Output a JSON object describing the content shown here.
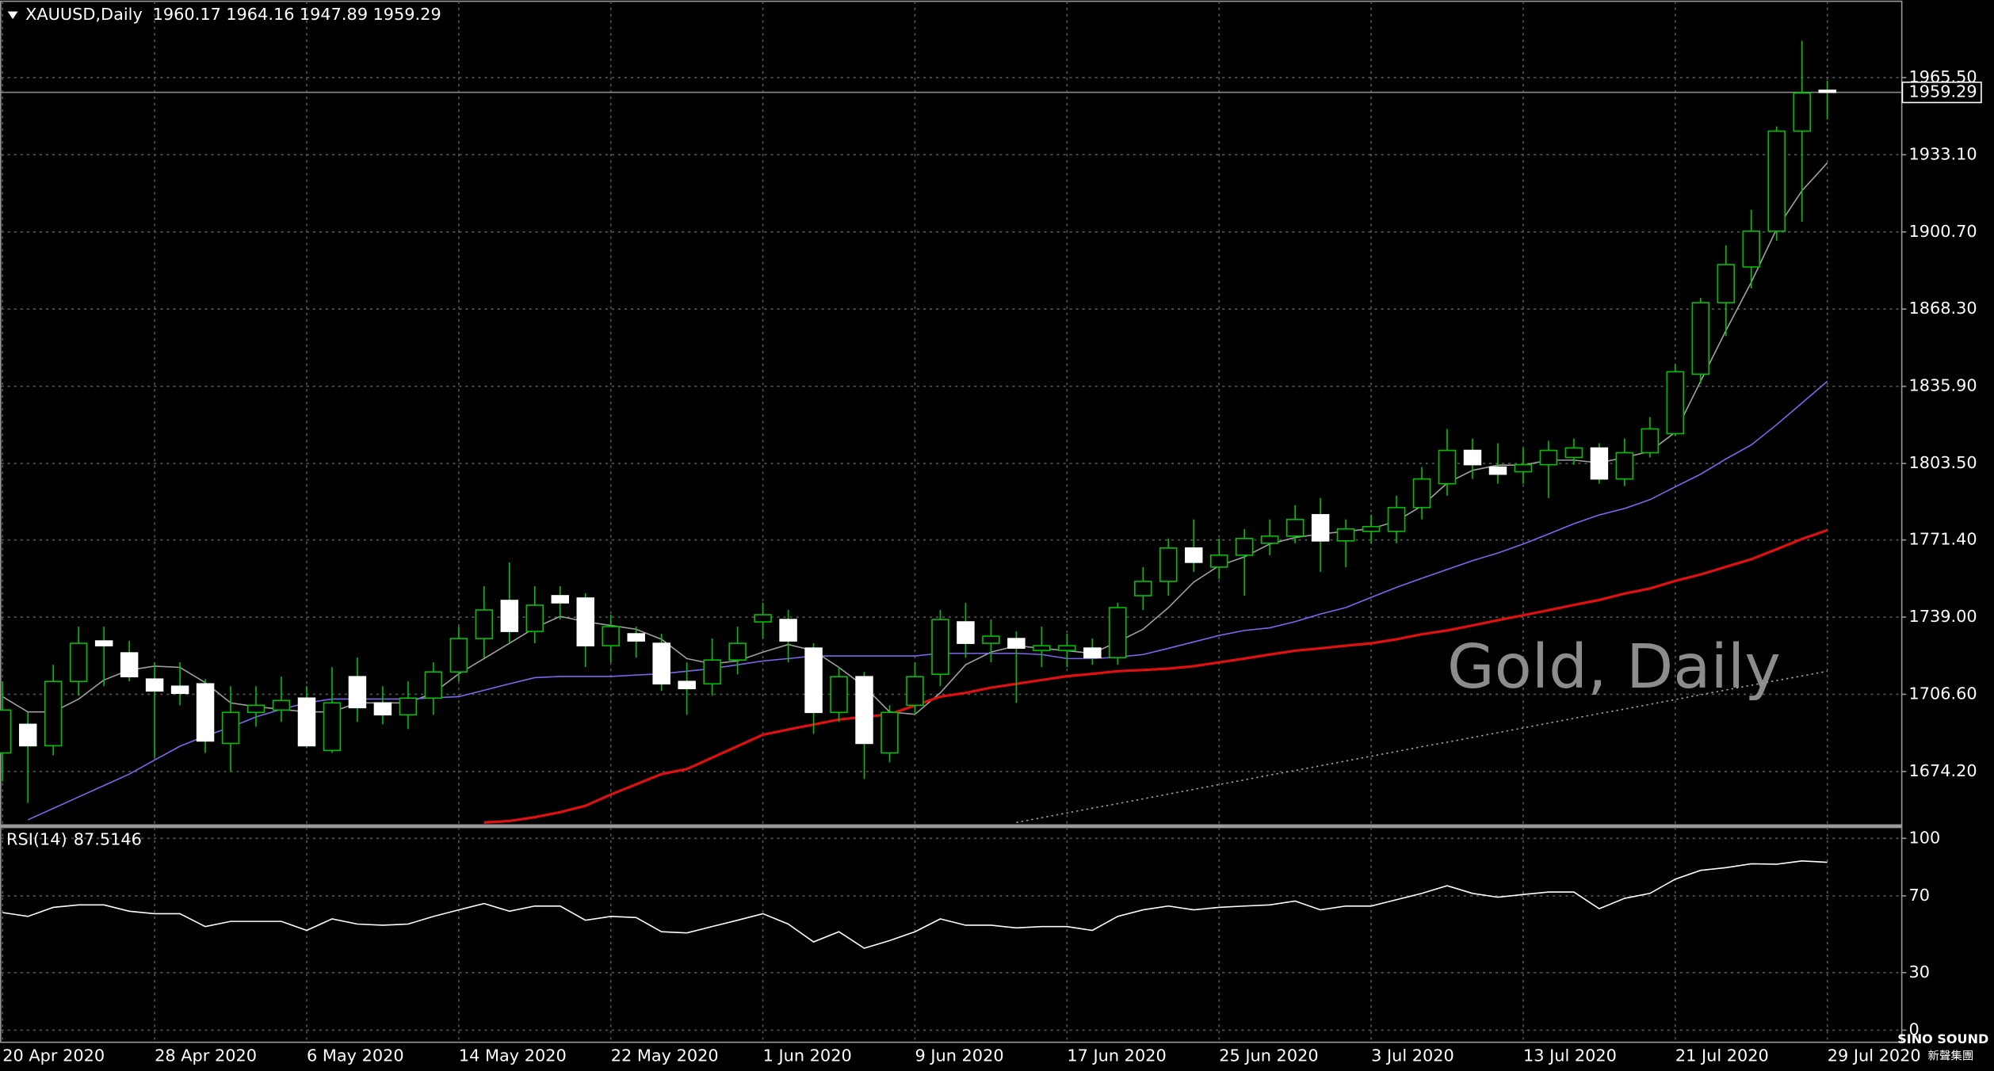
{
  "chart_data": [
    {
      "type": "candlestick",
      "symbol": "XAUUSD,Daily",
      "watermark": "Gold, Daily",
      "bull_color": "#00c000",
      "bear_color": "#ffffff",
      "wick_color": "#00c000",
      "grid": true,
      "categories": [
        "20 Apr 2020",
        null,
        null,
        null,
        null,
        null,
        "28 Apr 2020",
        null,
        null,
        null,
        null,
        null,
        "6 May 2020",
        null,
        null,
        null,
        null,
        null,
        "14 May 2020",
        null,
        null,
        null,
        null,
        null,
        "22 May 2020",
        null,
        null,
        null,
        null,
        null,
        "1 Jun 2020",
        null,
        null,
        null,
        null,
        null,
        "9 Jun 2020",
        null,
        null,
        null,
        null,
        null,
        "17 Jun 2020",
        null,
        null,
        null,
        null,
        null,
        "25 Jun 2020",
        null,
        null,
        null,
        null,
        null,
        "3 Jul 2020",
        null,
        null,
        null,
        null,
        null,
        "13 Jul 2020",
        null,
        null,
        null,
        null,
        null,
        "21 Jul 2020",
        null,
        null,
        null,
        null,
        null,
        "29 Jul 2020"
      ],
      "open": [
        1682,
        1694,
        1685,
        1712,
        1729,
        1724,
        1713,
        1710,
        1711,
        1686,
        1699,
        1700,
        1705,
        1683,
        1714,
        1703,
        1698,
        1705,
        1716,
        1730,
        1746,
        1733,
        1748,
        1747,
        1727,
        1732,
        1728,
        1712,
        1711,
        1721,
        1737,
        1738,
        1726,
        1699,
        1714,
        1682,
        1702,
        1715,
        1737,
        1728,
        1730,
        1725,
        1725,
        1726,
        1722,
        1748,
        1754,
        1768,
        1760,
        1765,
        1770,
        1773,
        1782,
        1771,
        1775,
        1775,
        1785,
        1795,
        1809,
        1802,
        1800,
        1803,
        1806,
        1810,
        1797,
        1808,
        1816,
        1841,
        1871,
        1886,
        1901,
        1943,
        1960.17
      ],
      "high": [
        1712,
        1699,
        1719,
        1735,
        1735,
        1729,
        1720,
        1720,
        1713,
        1710,
        1710,
        1714,
        1710,
        1718,
        1722,
        1710,
        1712,
        1720,
        1735,
        1752,
        1762,
        1752,
        1752,
        1749,
        1740,
        1735,
        1732,
        1720,
        1730,
        1735,
        1745,
        1742,
        1728,
        1718,
        1716,
        1702,
        1720,
        1742,
        1745,
        1738,
        1733,
        1735,
        1732,
        1730,
        1745,
        1760,
        1772,
        1780,
        1772,
        1776,
        1780,
        1786,
        1789,
        1780,
        1782,
        1790,
        1802,
        1818,
        1814,
        1812,
        1810,
        1813,
        1814,
        1812,
        1814,
        1823,
        1845,
        1873,
        1895,
        1910,
        1945,
        1981,
        1964.16
      ],
      "low": [
        1670,
        1661,
        1681,
        1706,
        1710,
        1712,
        1680,
        1702,
        1682,
        1674,
        1693,
        1695,
        1684,
        1682,
        1695,
        1694,
        1692,
        1698,
        1712,
        1722,
        1728,
        1728,
        1738,
        1718,
        1720,
        1722,
        1708,
        1698,
        1706,
        1715,
        1730,
        1720,
        1690,
        1695,
        1671,
        1678,
        1698,
        1710,
        1722,
        1720,
        1703,
        1718,
        1718,
        1719,
        1719,
        1742,
        1748,
        1758,
        1755,
        1748,
        1765,
        1770,
        1758,
        1760,
        1770,
        1770,
        1780,
        1790,
        1797,
        1795,
        1795,
        1789,
        1803,
        1795,
        1794,
        1806,
        1815,
        1837,
        1857,
        1877,
        1897,
        1905,
        1947.89
      ],
      "close": [
        1700,
        1685,
        1712,
        1728,
        1727,
        1714,
        1708,
        1707,
        1687,
        1699,
        1702,
        1704,
        1685,
        1703,
        1701,
        1698,
        1705,
        1716,
        1730,
        1742,
        1733,
        1744,
        1745,
        1727,
        1735,
        1729,
        1711,
        1709,
        1721,
        1728,
        1740,
        1729,
        1699,
        1714,
        1686,
        1699,
        1714,
        1738,
        1728,
        1731,
        1726,
        1727,
        1727,
        1722,
        1743,
        1754,
        1768,
        1762,
        1765,
        1772,
        1773,
        1780,
        1771,
        1776,
        1777,
        1785,
        1797,
        1809,
        1803,
        1799,
        1803,
        1809,
        1810,
        1797,
        1808,
        1818,
        1842,
        1871,
        1887,
        1901,
        1943,
        1959,
        1959.29
      ],
      "series": [
        {
          "color": "#a0a0a0",
          "style": "solid",
          "values": [
            1705.6,
            1699.2,
            1699.2,
            1704.6,
            1712.6,
            1716.8,
            1718.4,
            1717.9,
            1711.5,
            1703.0,
            1701.4,
            1700.3,
            1699.2,
            1699.2,
            1703.0,
            1703.0,
            1703.0,
            1707.2,
            1715.2,
            1721.6,
            1728.0,
            1734.5,
            1739.3,
            1737.1,
            1735.5,
            1733.9,
            1729.7,
            1721.6,
            1719.4,
            1720.6,
            1724.3,
            1727.5,
            1724.9,
            1717.9,
            1709.9,
            1699.2,
            1698.2,
            1707.2,
            1719.0,
            1724.3,
            1727.0,
            1725.9,
            1724.9,
            1723.8,
            1728.6,
            1733.9,
            1743.0,
            1753.7,
            1760.6,
            1764.3,
            1769.7,
            1772.4,
            1773.9,
            1775.0,
            1776.1,
            1779.3,
            1785.7,
            1795.3,
            1800.6,
            1802.8,
            1802.8,
            1804.9,
            1804.9,
            1803.8,
            1806.0,
            1808.6,
            1816.6,
            1838.0,
            1859.3,
            1879.6,
            1902.0,
            1918.0,
            1929.7
          ]
        },
        {
          "color": "#7b68ee",
          "style": "solid",
          "values": [
            null,
            1653.9,
            1658.7,
            1663.5,
            1668.3,
            1673.1,
            1679.0,
            1684.8,
            1689.1,
            1692.8,
            1697.1,
            1700.3,
            1703.0,
            1704.6,
            1704.6,
            1704.6,
            1704.6,
            1705.1,
            1705.6,
            1708.3,
            1711.0,
            1713.6,
            1714.1,
            1714.1,
            1714.1,
            1714.7,
            1715.2,
            1716.3,
            1717.4,
            1719.0,
            1720.6,
            1721.6,
            1722.7,
            1722.7,
            1722.7,
            1722.7,
            1722.7,
            1723.8,
            1723.8,
            1723.8,
            1723.8,
            1723.3,
            1721.6,
            1721.6,
            1722.2,
            1723.3,
            1725.9,
            1728.6,
            1731.3,
            1733.4,
            1734.5,
            1737.1,
            1740.3,
            1743.0,
            1747.3,
            1751.5,
            1755.3,
            1759.0,
            1762.7,
            1765.9,
            1769.7,
            1773.9,
            1778.2,
            1781.9,
            1784.6,
            1788.3,
            1793.7,
            1799.0,
            1805.4,
            1811.3,
            1819.8,
            1828.9,
            1838.0
          ]
        },
        {
          "color": "#e01010",
          "style": "thick",
          "values": [
            null,
            null,
            null,
            null,
            null,
            null,
            null,
            null,
            null,
            null,
            null,
            null,
            null,
            null,
            null,
            null,
            null,
            null,
            null,
            1652.8,
            1653.4,
            1655.0,
            1657.1,
            1659.8,
            1664.5,
            1668.8,
            1673.1,
            1675.2,
            1680.0,
            1684.8,
            1689.6,
            1691.8,
            1693.9,
            1696.0,
            1697.1,
            1698.2,
            1701.9,
            1705.6,
            1707.2,
            1709.4,
            1711.0,
            1712.6,
            1714.2,
            1715.2,
            1716.3,
            1716.8,
            1717.4,
            1718.4,
            1720.0,
            1721.6,
            1723.3,
            1724.9,
            1725.9,
            1727.0,
            1728.0,
            1729.7,
            1731.8,
            1733.4,
            1735.5,
            1737.7,
            1739.8,
            1741.9,
            1744.1,
            1746.2,
            1748.9,
            1751.0,
            1754.2,
            1756.9,
            1760.1,
            1763.3,
            1767.5,
            1771.8,
            1775.5
          ]
        },
        {
          "color": "#a0a0a0",
          "style": "dotted",
          "values": [
            null,
            null,
            null,
            null,
            null,
            null,
            null,
            null,
            null,
            null,
            null,
            null,
            null,
            null,
            null,
            null,
            null,
            null,
            null,
            null,
            null,
            null,
            null,
            null,
            null,
            null,
            null,
            null,
            null,
            null,
            null,
            null,
            null,
            null,
            null,
            null,
            null,
            null,
            null,
            null,
            1652.8,
            1654.8,
            1656.8,
            1658.8,
            1660.7,
            1662.7,
            1664.7,
            1666.7,
            1668.7,
            1670.7,
            1672.7,
            1674.6,
            1676.6,
            1678.6,
            1680.6,
            1682.6,
            1684.6,
            1686.5,
            1688.5,
            1690.5,
            1692.5,
            1694.5,
            1696.5,
            1698.5,
            1700.4,
            1702.4,
            1704.4,
            1706.4,
            1708.4,
            1710.4,
            1712.4,
            1714.3,
            1716.3
          ]
        }
      ],
      "ylim": [
        1652.3,
        1997
      ],
      "yticks": [
        {
          "value": 1965.5,
          "label": "1965.50"
        },
        {
          "value": 1933.1,
          "label": "1933.10"
        },
        {
          "value": 1900.7,
          "label": "1900.70"
        },
        {
          "value": 1868.3,
          "label": "1868.30"
        },
        {
          "value": 1835.9,
          "label": "1835.90"
        },
        {
          "value": 1803.5,
          "label": "1803.50"
        },
        {
          "value": 1771.4,
          "label": "1771.40"
        },
        {
          "value": 1739,
          "label": "1739.00"
        },
        {
          "value": 1706.6,
          "label": "1706.60"
        },
        {
          "value": 1674.2,
          "label": "1674.20"
        }
      ]
    },
    {
      "type": "line",
      "title": "RSI(14)",
      "grid": true,
      "series": [
        {
          "color": "#ffffff",
          "style": "solid",
          "values": [
            61.3,
            59.3,
            64,
            65.3,
            65.3,
            62,
            60.7,
            60.7,
            54,
            56.7,
            56.7,
            56.7,
            52,
            58,
            55.3,
            54.7,
            55.3,
            59.3,
            62.7,
            66,
            62,
            64.7,
            64.7,
            57.3,
            59.3,
            58.7,
            51.3,
            50.7,
            54,
            57.3,
            60.7,
            55.3,
            46,
            51.3,
            42.7,
            46.7,
            51.3,
            58,
            54.7,
            54.7,
            53.3,
            54,
            54,
            52,
            59.3,
            62.7,
            64.7,
            62.7,
            64,
            64.7,
            65.3,
            67.3,
            62.7,
            64.7,
            64.7,
            68,
            71.3,
            75.3,
            71.3,
            69.3,
            70.7,
            72,
            72,
            63.3,
            68.7,
            71.3,
            78.7,
            83.3,
            84.7,
            86.7,
            86.5,
            88.2,
            87.5146
          ]
        }
      ],
      "ylim": [
        -5,
        105
      ],
      "yticks": [
        100,
        70,
        30,
        0
      ]
    }
  ],
  "logo": {
    "name": "SINO SOUND",
    "subtitle": "新聲集團"
  }
}
